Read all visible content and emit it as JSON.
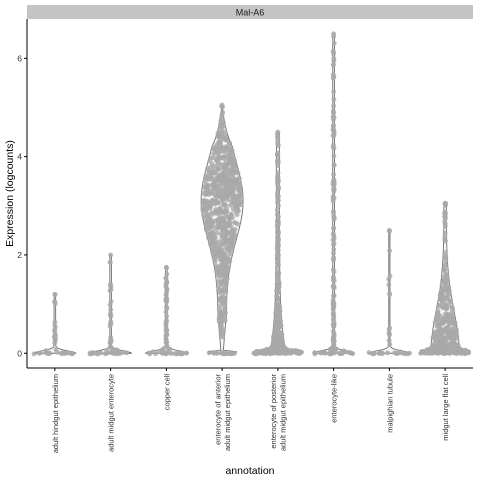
{
  "chart_data": {
    "type": "violin",
    "facet_label": "Mal-A6",
    "xlabel": "annotation",
    "ylabel": "Expression (logcounts)",
    "ylim": [
      -0.3,
      6.8
    ],
    "yticks": [
      0,
      2,
      4,
      6
    ],
    "grid": false,
    "categories": [
      "adult hindgut epithelium",
      "adult midgut enterocyte",
      "copper cell",
      "enterocyte of anterior\nadult midgut epithelium",
      "enterocyte of posterior\nadult midgut epithelium",
      "enterocyte-like",
      "malpighian tubule",
      "midgut large flat cell"
    ],
    "max_values": [
      1.2,
      2.0,
      1.75,
      5.05,
      4.5,
      6.5,
      2.5,
      3.05
    ],
    "colors": {
      "point": "#a9a9a9",
      "violin_stroke": "#6e6e6e",
      "strip": "#c4c4c4",
      "axis": "#000000"
    }
  }
}
